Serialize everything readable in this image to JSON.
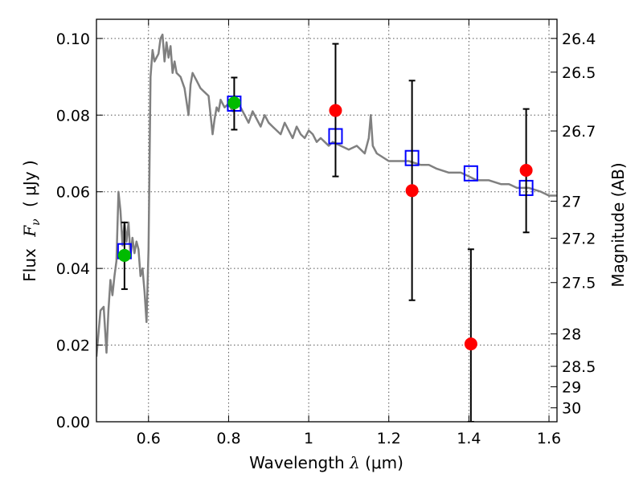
{
  "chart_data": {
    "type": "scatter",
    "xlabel_prefix": "Wavelength",
    "xlabel_symbol": "λ",
    "xlabel_unit": "(μm)",
    "ylabel_prefix": "Flux",
    "ylabel_symbol": "F",
    "ylabel_subscript": "ν",
    "ylabel_unit": "( μJy )",
    "y2label": "Magnitude (AB)",
    "xlim": [
      0.47,
      1.62
    ],
    "ylim": [
      0.0,
      0.105
    ],
    "x_ticks": [
      0.6,
      0.8,
      1.0,
      1.2,
      1.4,
      1.6
    ],
    "x_tick_labels": [
      "0.6",
      "0.8",
      "1",
      "1.2",
      "1.4",
      "1.6"
    ],
    "y_ticks": [
      0.0,
      0.02,
      0.04,
      0.06,
      0.08,
      0.1
    ],
    "y_tick_labels": [
      "0.00",
      "0.02",
      "0.04",
      "0.06",
      "0.08",
      "0.10"
    ],
    "y2_ticks": [
      26.4,
      26.5,
      26.7,
      27,
      27.2,
      27.5,
      28,
      28.5,
      29,
      30
    ],
    "y2_tick_labels": [
      "26.4",
      "26.5",
      "26.7",
      "27",
      "27.2",
      "27.5",
      "28",
      "28.5",
      "29",
      "30"
    ],
    "grid": true,
    "colors": {
      "model": "#808080",
      "green_points": "#00bb00",
      "red_points": "#ff0000",
      "blue_squares": "#0000ff",
      "error_bars": "#000000"
    },
    "series": [
      {
        "name": "model-spectrum",
        "style": "line",
        "x": [
          0.47,
          0.48,
          0.488,
          0.495,
          0.5,
          0.505,
          0.51,
          0.515,
          0.52,
          0.525,
          0.53,
          0.535,
          0.54,
          0.545,
          0.55,
          0.555,
          0.56,
          0.565,
          0.57,
          0.575,
          0.58,
          0.585,
          0.59,
          0.595,
          0.6,
          0.605,
          0.61,
          0.615,
          0.62,
          0.625,
          0.63,
          0.635,
          0.64,
          0.645,
          0.65,
          0.655,
          0.66,
          0.665,
          0.67,
          0.68,
          0.69,
          0.7,
          0.705,
          0.71,
          0.72,
          0.73,
          0.74,
          0.75,
          0.76,
          0.765,
          0.77,
          0.775,
          0.78,
          0.79,
          0.8,
          0.81,
          0.82,
          0.83,
          0.84,
          0.85,
          0.86,
          0.87,
          0.88,
          0.89,
          0.9,
          0.91,
          0.92,
          0.93,
          0.94,
          0.95,
          0.96,
          0.97,
          0.98,
          0.99,
          1.0,
          1.01,
          1.02,
          1.03,
          1.04,
          1.05,
          1.06,
          1.08,
          1.1,
          1.12,
          1.14,
          1.15,
          1.155,
          1.16,
          1.17,
          1.2,
          1.22,
          1.25,
          1.28,
          1.3,
          1.32,
          1.35,
          1.38,
          1.4,
          1.42,
          1.45,
          1.48,
          1.5,
          1.52,
          1.55,
          1.58,
          1.6,
          1.62
        ],
        "y": [
          0.017,
          0.029,
          0.03,
          0.018,
          0.029,
          0.037,
          0.033,
          0.038,
          0.042,
          0.06,
          0.055,
          0.046,
          0.052,
          0.047,
          0.052,
          0.043,
          0.048,
          0.044,
          0.047,
          0.045,
          0.038,
          0.04,
          0.034,
          0.026,
          0.045,
          0.09,
          0.097,
          0.094,
          0.095,
          0.096,
          0.1,
          0.101,
          0.094,
          0.099,
          0.095,
          0.098,
          0.091,
          0.094,
          0.091,
          0.09,
          0.087,
          0.08,
          0.088,
          0.091,
          0.089,
          0.087,
          0.086,
          0.085,
          0.075,
          0.079,
          0.082,
          0.081,
          0.084,
          0.082,
          0.083,
          0.081,
          0.084,
          0.082,
          0.08,
          0.078,
          0.081,
          0.079,
          0.077,
          0.08,
          0.078,
          0.077,
          0.076,
          0.075,
          0.078,
          0.076,
          0.074,
          0.077,
          0.075,
          0.074,
          0.076,
          0.075,
          0.073,
          0.074,
          0.073,
          0.072,
          0.073,
          0.072,
          0.071,
          0.072,
          0.07,
          0.074,
          0.08,
          0.072,
          0.07,
          0.068,
          0.068,
          0.068,
          0.067,
          0.067,
          0.066,
          0.065,
          0.065,
          0.064,
          0.063,
          0.063,
          0.062,
          0.062,
          0.061,
          0.061,
          0.06,
          0.059,
          0.059
        ]
      },
      {
        "name": "green-photometry",
        "style": "circle",
        "points": [
          {
            "x": 0.54,
            "y": 0.0434,
            "yerr_low": 0.0088,
            "yerr_high": 0.0086
          },
          {
            "x": 0.814,
            "y": 0.0832,
            "yerr_low": 0.007,
            "yerr_high": 0.0066
          }
        ]
      },
      {
        "name": "red-photometry",
        "style": "circle",
        "points": [
          {
            "x": 1.067,
            "y": 0.0812,
            "yerr_low": 0.0172,
            "yerr_high": 0.0174
          },
          {
            "x": 1.258,
            "y": 0.0603,
            "yerr_low": 0.0286,
            "yerr_high": 0.0287
          },
          {
            "x": 1.405,
            "y": 0.0203,
            "yerr_low": 0.0203,
            "yerr_high": 0.0247
          },
          {
            "x": 1.543,
            "y": 0.0656,
            "yerr_low": 0.0162,
            "yerr_high": 0.016
          }
        ]
      },
      {
        "name": "model-synthetic-photometry",
        "style": "open-square",
        "points": [
          {
            "x": 0.54,
            "y": 0.0445
          },
          {
            "x": 0.814,
            "y": 0.083
          },
          {
            "x": 1.067,
            "y": 0.0745
          },
          {
            "x": 1.258,
            "y": 0.0688
          },
          {
            "x": 1.405,
            "y": 0.0648
          },
          {
            "x": 1.543,
            "y": 0.061
          }
        ]
      }
    ]
  }
}
